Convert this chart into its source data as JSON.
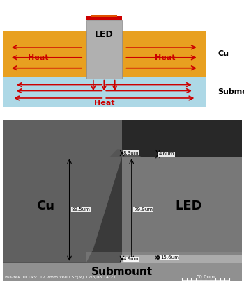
{
  "fig_width": 3.5,
  "fig_height": 4.08,
  "dpi": 100,
  "top_panel": {
    "cu_color": "#E8A020",
    "submount_color": "#ADD8E6",
    "led_body_color": "#B0B0B0",
    "led_top_color": "#CC0000",
    "arrow_color": "#CC0000",
    "heat_text_color": "#CC0000",
    "heat_text_left": "Heat",
    "heat_text_right": "Heat",
    "heat_text_bottom": "Heat",
    "led_label": "LED",
    "cu_label": "Cu",
    "submount_label": "Submount"
  },
  "bottom_panel": {
    "bg_color": "#404040",
    "cu_region_color": "#606060",
    "led_region_color": "#808080",
    "submount_color": "#909090",
    "labels": {
      "cu": "Cu",
      "led": "LED",
      "submount": "Submount"
    },
    "measurements": {
      "top_left": "8.3um",
      "top_right": "4.6um",
      "left": "89.5um",
      "center": "79.9um",
      "bottom_center": "15.6um",
      "bottom": "4.9um"
    },
    "footer_text": "ma-tek 10.0kV  12.7mm x600 SE(M) 12/8/08 14:21",
    "scale_text": "50.0um"
  }
}
